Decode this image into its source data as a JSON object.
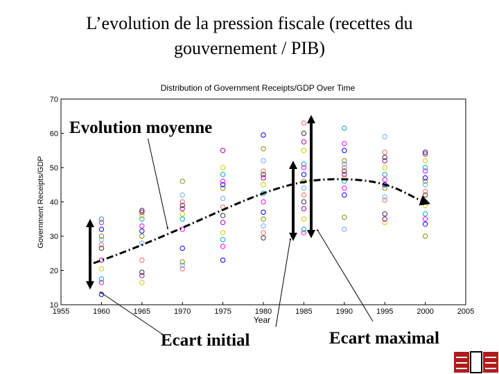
{
  "slide_title": "L’evolution de la pression fiscale (recettes du gouvernement / PIB)",
  "chart_data": {
    "type": "scatter",
    "title": "Distribution of Government Receipts/GDP Over Time",
    "x_label": "Year",
    "y_label": "Government Receipts/GDP",
    "xlim": [
      1955,
      2005
    ],
    "xticks": [
      1955,
      1960,
      1965,
      1970,
      1975,
      1980,
      1985,
      1990,
      1995,
      2000,
      2005
    ],
    "ylim": [
      10,
      70
    ],
    "yticks": [
      10,
      20,
      30,
      40,
      50,
      60,
      70
    ],
    "colors": [
      "#0000ff",
      "#ff00ff",
      "#00aaaa",
      "#cccc00",
      "#aa00aa",
      "#333333",
      "#ff6666",
      "#66aaff",
      "#888800"
    ],
    "x": [
      1960,
      1960,
      1960,
      1960,
      1960,
      1960,
      1960,
      1960,
      1960,
      1960,
      1960,
      1960,
      1965,
      1965,
      1965,
      1965,
      1965,
      1965,
      1965,
      1965,
      1965,
      1965,
      1965,
      1965,
      1970,
      1970,
      1970,
      1970,
      1970,
      1970,
      1970,
      1970,
      1970,
      1970,
      1970,
      1970,
      1975,
      1975,
      1975,
      1975,
      1975,
      1975,
      1975,
      1975,
      1975,
      1975,
      1975,
      1975,
      1975,
      1975,
      1980,
      1980,
      1980,
      1980,
      1980,
      1980,
      1980,
      1980,
      1980,
      1980,
      1980,
      1980,
      1980,
      1980,
      1985,
      1985,
      1985,
      1985,
      1985,
      1985,
      1985,
      1985,
      1985,
      1985,
      1985,
      1985,
      1985,
      1985,
      1985,
      1990,
      1990,
      1990,
      1990,
      1990,
      1990,
      1990,
      1990,
      1990,
      1990,
      1990,
      1990,
      1990,
      1990,
      1995,
      1995,
      1995,
      1995,
      1995,
      1995,
      1995,
      1995,
      1995,
      1995,
      1995,
      1995,
      1995,
      1995,
      2000,
      2000,
      2000,
      2000,
      2000,
      2000,
      2000,
      2000,
      2000,
      2000,
      2000,
      2000,
      2000,
      2000,
      2000,
      2000
    ],
    "values": [
      13,
      16.5,
      17.5,
      20.5,
      23,
      26.5,
      27.5,
      29,
      30,
      32,
      34,
      35,
      16.5,
      18.5,
      19.5,
      23,
      28,
      30,
      31.5,
      33,
      35,
      36,
      37,
      37.5,
      20.5,
      21.5,
      22.5,
      26.5,
      32,
      35,
      36.5,
      38,
      39,
      40,
      42,
      46,
      23,
      27,
      29,
      31,
      34,
      36,
      38.5,
      41,
      44,
      45,
      46,
      48,
      50,
      55,
      29.5,
      31,
      33,
      35,
      37,
      40,
      42.5,
      45,
      47,
      48,
      49,
      52,
      55.5,
      59.5,
      31,
      32,
      35,
      38,
      40,
      42,
      44,
      46,
      48,
      50,
      51,
      55,
      57.5,
      60,
      63,
      32,
      35.5,
      42,
      44,
      46,
      47,
      48,
      49,
      50,
      51,
      52,
      55,
      57,
      61.5,
      34,
      35,
      36.5,
      40.5,
      41.5,
      44,
      45,
      46.5,
      48,
      50,
      52,
      53,
      54.5,
      59,
      30,
      33.5,
      35,
      36.5,
      39,
      40,
      42,
      43,
      45,
      46,
      47,
      49,
      50,
      52,
      54,
      54.5
    ],
    "annotations": [
      "Evolution moyenne",
      "Ecart initial",
      "Ecart maximal"
    ]
  }
}
